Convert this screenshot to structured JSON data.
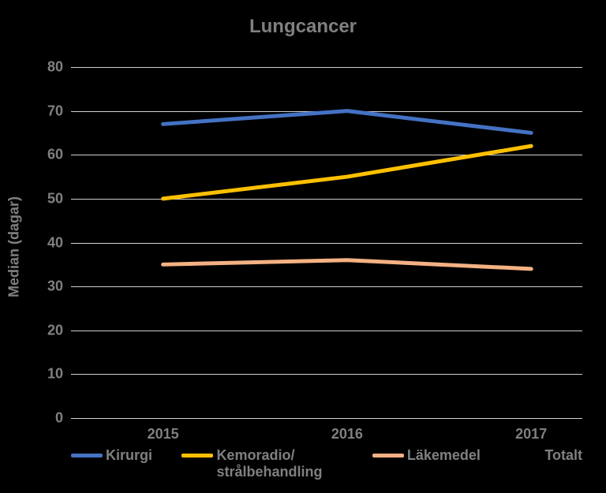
{
  "chart": {
    "type": "line",
    "title": "Lungcancer",
    "title_fontsize": 24,
    "title_color": "#808080",
    "background_color": "#000000",
    "ylabel": "Median (dagar)",
    "ylabel_fontsize": 18,
    "ylabel_color": "#808080",
    "x_categories": [
      "2015",
      "2016",
      "2017"
    ],
    "x_positions_pct": [
      18,
      54,
      90
    ],
    "x_tick_fontsize": 18,
    "ylim": [
      0,
      80
    ],
    "ytick_step": 10,
    "y_ticks": [
      0,
      10,
      20,
      30,
      40,
      50,
      60,
      70,
      80
    ],
    "y_tick_fontsize": 18,
    "grid_color": "#d0d0d0",
    "line_width": 5,
    "series": [
      {
        "name": "Kirurgi",
        "color": "#4472c4",
        "values": [
          67,
          70,
          65
        ]
      },
      {
        "name": "Kemoradio/ strålbehandling",
        "color": "#ffc000",
        "values": [
          50,
          55,
          62
        ]
      },
      {
        "name": "Läkemedel",
        "color": "#f4b183",
        "values": [
          35,
          36,
          34
        ]
      },
      {
        "name": "Totalt",
        "color": null,
        "values": null
      }
    ],
    "legend_fontsize": 18
  }
}
